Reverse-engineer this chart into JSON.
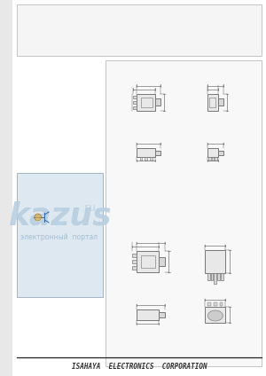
{
  "bg_color": "#e8e8e8",
  "page_bg": "#ffffff",
  "footer_text": "ISAHAYA  ELECTRONICS  CORPORATION",
  "footer_fontsize": 5.5,
  "watermark_text1": "kazus",
  "watermark_dot_ru": ".ru",
  "watermark_text2": "электронный  портал",
  "watermark_color": "#b8cfe0",
  "watermark_color2": "#9ab8cc",
  "diagram_color": "#777777",
  "lead_color": "#888888",
  "body_fill": "#e8e8e8",
  "tab_fill": "#d8d8d8"
}
